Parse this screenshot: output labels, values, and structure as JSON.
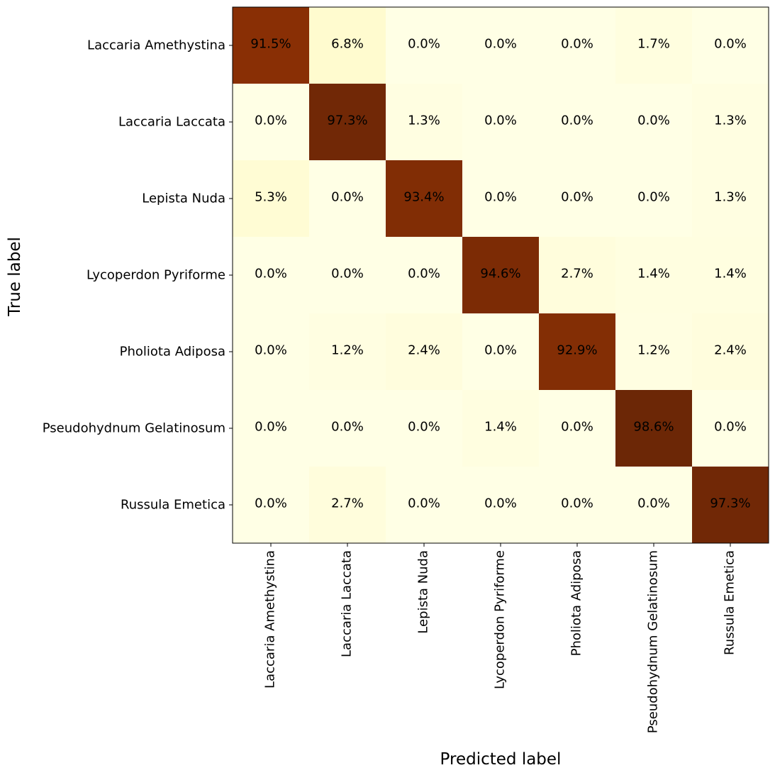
{
  "chart_data": {
    "type": "heatmap",
    "xlabel": "Predicted label",
    "ylabel": "True label",
    "x_categories": [
      "Laccaria Amethystina",
      "Laccaria Laccata",
      "Lepista Nuda",
      "Lycoperdon Pyriforme",
      "Pholiota Adiposa",
      "Pseudohydnum Gelatinosum",
      "Russula Emetica"
    ],
    "y_categories": [
      "Laccaria Amethystina",
      "Laccaria Laccata",
      "Lepista Nuda",
      "Lycoperdon Pyriforme",
      "Pholiota Adiposa",
      "Pseudohydnum Gelatinosum",
      "Russula Emetica"
    ],
    "values": [
      [
        91.5,
        6.8,
        0.0,
        0.0,
        0.0,
        1.7,
        0.0
      ],
      [
        0.0,
        97.3,
        1.3,
        0.0,
        0.0,
        0.0,
        1.3
      ],
      [
        5.3,
        0.0,
        93.4,
        0.0,
        0.0,
        0.0,
        1.3
      ],
      [
        0.0,
        0.0,
        0.0,
        94.6,
        2.7,
        1.4,
        1.4
      ],
      [
        0.0,
        1.2,
        2.4,
        0.0,
        92.9,
        1.2,
        2.4
      ],
      [
        0.0,
        0.0,
        0.0,
        1.4,
        0.0,
        98.6,
        0.0
      ],
      [
        0.0,
        2.7,
        0.0,
        0.0,
        0.0,
        0.0,
        97.3
      ]
    ],
    "cell_labels": [
      [
        "91.5%",
        "6.8%",
        "0.0%",
        "0.0%",
        "0.0%",
        "1.7%",
        "0.0%"
      ],
      [
        "0.0%",
        "97.3%",
        "1.3%",
        "0.0%",
        "0.0%",
        "0.0%",
        "1.3%"
      ],
      [
        "5.3%",
        "0.0%",
        "93.4%",
        "0.0%",
        "0.0%",
        "0.0%",
        "1.3%"
      ],
      [
        "0.0%",
        "0.0%",
        "0.0%",
        "94.6%",
        "2.7%",
        "1.4%",
        "1.4%"
      ],
      [
        "0.0%",
        "1.2%",
        "2.4%",
        "0.0%",
        "92.9%",
        "1.2%",
        "2.4%"
      ],
      [
        "0.0%",
        "0.0%",
        "0.0%",
        "1.4%",
        "0.0%",
        "98.6%",
        "0.0%"
      ],
      [
        "0.0%",
        "2.7%",
        "0.0%",
        "0.0%",
        "0.0%",
        "0.0%",
        "97.3%"
      ]
    ],
    "colormap": "YlOrBr",
    "value_range": [
      0,
      100
    ],
    "colorbar": false,
    "grid": false
  }
}
